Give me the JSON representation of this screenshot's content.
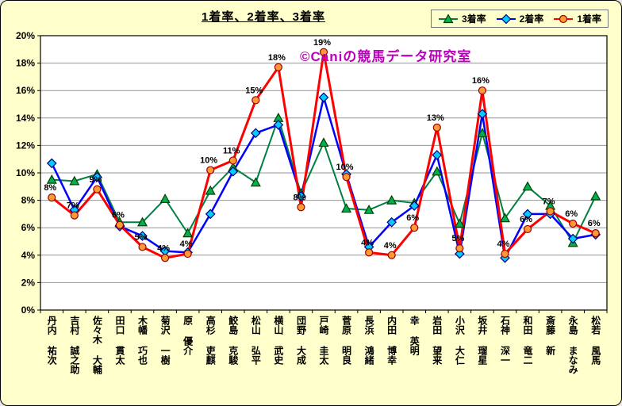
{
  "title": "1着率、2着率、3着率",
  "watermark": "©Caniの競馬データ研究室",
  "colors": {
    "background": "#FFFFCC",
    "plot_background": "#FFFFFF",
    "grid": "#969696",
    "axis": "#000000",
    "title": "#000000",
    "watermark": "#BB00BB",
    "series_3rd": "#008040",
    "series_2nd": "#0000FF",
    "series_1st": "#FF0000"
  },
  "chart_data": {
    "type": "line",
    "title": "1着率、2着率、3着率",
    "xlabel": "",
    "ylabel": "",
    "ylim": [
      0,
      20
    ],
    "y_tick_step": 2,
    "y_ticks": [
      "0%",
      "2%",
      "4%",
      "6%",
      "8%",
      "10%",
      "12%",
      "14%",
      "16%",
      "18%",
      "20%"
    ],
    "grid": true,
    "legend_position": "top-right",
    "categories": [
      "丹内 祐次",
      "吉村 誠之助",
      "佐々木 大輔",
      "田口 貫太",
      "木幡 巧也",
      "菊沢 一樹",
      "原 優介",
      "高杉 吏麒",
      "鮫島 克駿",
      "松山 弘平",
      "横山 武史",
      "団野 大成",
      "戸崎 圭太",
      "菅原 明良",
      "長浜 鴻緒",
      "内田 博幸",
      "幸 英明",
      "岩田 望来",
      "小沢 大仁",
      "坂井 瑠星",
      "石神 深一",
      "和田 竜二",
      "斎藤 新",
      "永島 まなみ",
      "松若 風馬"
    ],
    "series": [
      {
        "name": "3着率",
        "marker": "triangle",
        "line_color": "#008040",
        "marker_fill": "#00B050",
        "marker_stroke": "#004000",
        "line_width": 2,
        "values": [
          9.5,
          9.4,
          9.9,
          6.4,
          6.4,
          8.1,
          5.6,
          8.7,
          10.4,
          9.3,
          14,
          8.5,
          12.2,
          7.4,
          7.3,
          8,
          7.8,
          10.1,
          6.3,
          12.9,
          6.7,
          9,
          7.6,
          4.9,
          8.3
        ]
      },
      {
        "name": "2着率",
        "marker": "diamond",
        "line_color": "#0000FF",
        "marker_fill": "#00CCFF",
        "marker_stroke": "#000080",
        "line_width": 2.5,
        "values": [
          10.7,
          7.3,
          9.7,
          6.1,
          5.4,
          4.3,
          4.2,
          7,
          10.1,
          12.9,
          13.5,
          8.3,
          15.5,
          9.9,
          4.6,
          6.4,
          7.6,
          11.3,
          4.1,
          14.3,
          3.8,
          7,
          7,
          5.2,
          5.5
        ]
      },
      {
        "name": "1着率",
        "marker": "circle",
        "line_color": "#FF0000",
        "marker_fill": "#FF9933",
        "marker_stroke": "#990000",
        "line_width": 3,
        "values": [
          8.2,
          6.9,
          8.8,
          6.2,
          4.6,
          3.8,
          4.1,
          10.2,
          10.9,
          15.3,
          17.7,
          7.5,
          18.8,
          9.7,
          4.2,
          4,
          6,
          13.3,
          4.5,
          16,
          4.1,
          5.9,
          7.2,
          6.3,
          5.6
        ],
        "point_labels": [
          "8%",
          "7%",
          "9%",
          "6%",
          "5%",
          "4%",
          "4%",
          "10%",
          "11%",
          "15%",
          "18%",
          "8%",
          "19%",
          "10%",
          "4%",
          "4%",
          "6%",
          "13%",
          "5%",
          "16%",
          "4%",
          "6%",
          "7%",
          "6%",
          "6%"
        ]
      }
    ]
  }
}
